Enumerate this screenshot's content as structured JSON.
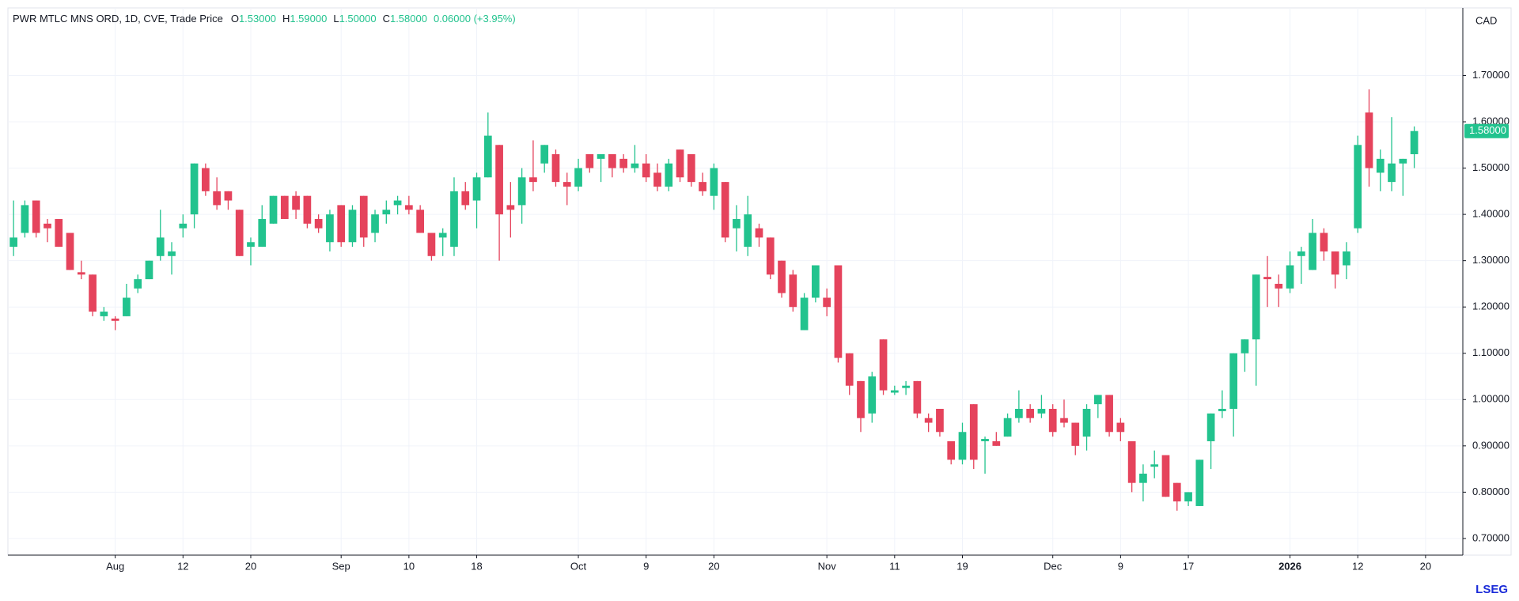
{
  "header": {
    "title": "PWR MTLC MNS ORD, 1D, CVE, Trade Price",
    "items": [
      {
        "label": "O",
        "value": "1.53000"
      },
      {
        "label": "H",
        "value": "1.59000"
      },
      {
        "label": "L",
        "value": "1.50000"
      },
      {
        "label": "C",
        "value": "1.58000"
      }
    ],
    "change": "0.06000 (+3.95%)"
  },
  "currency": "CAD",
  "logo": "LSEG",
  "chart_data": {
    "type": "candlestick",
    "up_color": "#22c38e",
    "down_color": "#e5435c",
    "grid": true,
    "last_price": {
      "value": 1.58,
      "label": "1.58000"
    },
    "open": [
      1.33,
      1.36,
      1.43,
      1.38,
      1.39,
      1.36,
      1.275,
      1.27,
      1.18,
      1.175,
      1.18,
      1.24,
      1.26,
      1.31,
      1.31,
      1.37,
      1.4,
      1.5,
      1.45,
      1.45,
      1.41,
      1.33,
      1.33,
      1.38,
      1.44,
      1.44,
      1.44,
      1.39,
      1.34,
      1.42,
      1.34,
      1.44,
      1.36,
      1.4,
      1.42,
      1.42,
      1.41,
      1.36,
      1.35,
      1.33,
      1.45,
      1.43,
      1.48,
      1.55,
      1.42,
      1.42,
      1.48,
      1.51,
      1.53,
      1.47,
      1.46,
      1.53,
      1.52,
      1.53,
      1.52,
      1.5,
      1.51,
      1.49,
      1.46,
      1.54,
      1.53,
      1.47,
      1.44,
      1.47,
      1.37,
      1.33,
      1.37,
      1.35,
      1.3,
      1.27,
      1.15,
      1.22,
      1.22,
      1.29,
      1.1,
      1.04,
      0.97,
      1.13,
      1.015,
      1.025,
      1.04,
      0.96,
      0.98,
      0.91,
      0.87,
      0.99,
      0.91,
      0.91,
      0.92,
      0.96,
      0.98,
      0.97,
      0.98,
      0.96,
      0.95,
      0.92,
      0.99,
      1.01,
      0.95,
      0.91,
      0.82,
      0.855,
      0.88,
      0.82,
      0.78,
      0.77,
      0.91,
      0.975,
      0.98,
      1.1,
      1.13,
      1.265,
      1.25,
      1.24,
      1.31,
      1.28,
      1.36,
      1.32,
      1.29,
      1.37,
      1.62,
      1.49,
      1.47,
      1.51,
      1.53
    ],
    "high": [
      1.43,
      1.43,
      1.43,
      1.39,
      1.39,
      1.36,
      1.3,
      1.27,
      1.2,
      1.18,
      1.25,
      1.27,
      1.3,
      1.41,
      1.34,
      1.4,
      1.51,
      1.51,
      1.48,
      1.45,
      1.41,
      1.35,
      1.42,
      1.44,
      1.44,
      1.45,
      1.44,
      1.4,
      1.41,
      1.42,
      1.42,
      1.44,
      1.41,
      1.43,
      1.44,
      1.44,
      1.42,
      1.36,
      1.37,
      1.48,
      1.47,
      1.49,
      1.62,
      1.55,
      1.47,
      1.5,
      1.56,
      1.55,
      1.54,
      1.49,
      1.52,
      1.53,
      1.53,
      1.53,
      1.53,
      1.55,
      1.53,
      1.51,
      1.52,
      1.54,
      1.53,
      1.49,
      1.51,
      1.47,
      1.42,
      1.44,
      1.38,
      1.35,
      1.3,
      1.28,
      1.23,
      1.29,
      1.24,
      1.29,
      1.1,
      1.04,
      1.06,
      1.13,
      1.03,
      1.04,
      1.04,
      0.97,
      0.98,
      0.91,
      0.95,
      0.99,
      0.92,
      0.93,
      0.97,
      1.02,
      0.99,
      1.01,
      0.99,
      1.0,
      0.95,
      0.99,
      1.01,
      1.01,
      0.96,
      0.91,
      0.86,
      0.89,
      0.88,
      0.82,
      0.8,
      0.87,
      0.97,
      1.02,
      1.1,
      1.13,
      1.27,
      1.31,
      1.27,
      1.32,
      1.33,
      1.39,
      1.37,
      1.32,
      1.34,
      1.57,
      1.67,
      1.54,
      1.61,
      1.52,
      1.59
    ],
    "low": [
      1.31,
      1.35,
      1.35,
      1.34,
      1.33,
      1.28,
      1.26,
      1.18,
      1.17,
      1.15,
      1.18,
      1.23,
      1.26,
      1.3,
      1.27,
      1.35,
      1.37,
      1.44,
      1.41,
      1.41,
      1.31,
      1.29,
      1.33,
      1.38,
      1.39,
      1.39,
      1.37,
      1.36,
      1.32,
      1.33,
      1.33,
      1.33,
      1.34,
      1.38,
      1.4,
      1.4,
      1.36,
      1.3,
      1.31,
      1.31,
      1.41,
      1.37,
      1.48,
      1.3,
      1.35,
      1.38,
      1.45,
      1.49,
      1.46,
      1.42,
      1.45,
      1.49,
      1.47,
      1.48,
      1.49,
      1.49,
      1.47,
      1.45,
      1.45,
      1.47,
      1.46,
      1.44,
      1.41,
      1.34,
      1.32,
      1.31,
      1.33,
      1.26,
      1.22,
      1.19,
      1.15,
      1.21,
      1.18,
      1.08,
      1.01,
      0.93,
      0.95,
      1.01,
      1.01,
      1.01,
      0.96,
      0.93,
      0.92,
      0.86,
      0.86,
      0.85,
      0.84,
      0.9,
      0.92,
      0.95,
      0.95,
      0.96,
      0.92,
      0.94,
      0.88,
      0.89,
      0.96,
      0.92,
      0.91,
      0.8,
      0.78,
      0.83,
      0.79,
      0.76,
      0.77,
      0.77,
      0.85,
      0.96,
      0.92,
      1.06,
      1.03,
      1.2,
      1.2,
      1.23,
      1.25,
      1.28,
      1.3,
      1.24,
      1.26,
      1.36,
      1.46,
      1.45,
      1.45,
      1.44,
      1.5
    ],
    "close": [
      1.35,
      1.42,
      1.36,
      1.37,
      1.33,
      1.28,
      1.27,
      1.19,
      1.19,
      1.17,
      1.22,
      1.26,
      1.3,
      1.35,
      1.32,
      1.38,
      1.51,
      1.45,
      1.42,
      1.43,
      1.31,
      1.34,
      1.39,
      1.44,
      1.39,
      1.41,
      1.38,
      1.37,
      1.4,
      1.34,
      1.41,
      1.35,
      1.4,
      1.41,
      1.43,
      1.41,
      1.36,
      1.31,
      1.36,
      1.45,
      1.42,
      1.48,
      1.57,
      1.4,
      1.41,
      1.48,
      1.47,
      1.55,
      1.47,
      1.46,
      1.5,
      1.5,
      1.53,
      1.5,
      1.5,
      1.51,
      1.48,
      1.46,
      1.51,
      1.48,
      1.47,
      1.45,
      1.5,
      1.35,
      1.39,
      1.4,
      1.35,
      1.27,
      1.23,
      1.2,
      1.22,
      1.29,
      1.2,
      1.09,
      1.03,
      0.96,
      1.05,
      1.02,
      1.02,
      1.03,
      0.97,
      0.95,
      0.93,
      0.87,
      0.93,
      0.87,
      0.915,
      0.9,
      0.96,
      0.98,
      0.96,
      0.98,
      0.93,
      0.95,
      0.9,
      0.98,
      1.01,
      0.93,
      0.93,
      0.82,
      0.84,
      0.86,
      0.79,
      0.78,
      0.8,
      0.87,
      0.97,
      0.98,
      1.1,
      1.13,
      1.27,
      1.26,
      1.24,
      1.29,
      1.32,
      1.36,
      1.32,
      1.27,
      1.32,
      1.55,
      1.5,
      1.52,
      1.51,
      1.52,
      1.58
    ],
    "xlim": [
      -0.5,
      128.3
    ],
    "xticks": [
      {
        "value": 9,
        "label": "Aug"
      },
      {
        "value": 15,
        "label": "12"
      },
      {
        "value": 21,
        "label": "20"
      },
      {
        "value": 29,
        "label": "Sep"
      },
      {
        "value": 35,
        "label": "10"
      },
      {
        "value": 41,
        "label": "18"
      },
      {
        "value": 50,
        "label": "Oct"
      },
      {
        "value": 56,
        "label": "9"
      },
      {
        "value": 62,
        "label": "20"
      },
      {
        "value": 72,
        "label": "Nov"
      },
      {
        "value": 78,
        "label": "11"
      },
      {
        "value": 84,
        "label": "19"
      },
      {
        "value": 92,
        "label": "Dec"
      },
      {
        "value": 98,
        "label": "9"
      },
      {
        "value": 104,
        "label": "17"
      },
      {
        "value": 113,
        "label": "2026"
      },
      {
        "value": 119,
        "label": "12"
      },
      {
        "value": 125,
        "label": "20"
      }
    ],
    "ylim": [
      0.664,
      1.846
    ],
    "yticks": [
      {
        "value": 0.7,
        "label": "0.70000"
      },
      {
        "value": 0.8,
        "label": "0.80000"
      },
      {
        "value": 0.9,
        "label": "0.90000"
      },
      {
        "value": 1.0,
        "label": "1.00000"
      },
      {
        "value": 1.1,
        "label": "1.10000"
      },
      {
        "value": 1.2,
        "label": "1.20000"
      },
      {
        "value": 1.3,
        "label": "1.30000"
      },
      {
        "value": 1.4,
        "label": "1.40000"
      },
      {
        "value": 1.5,
        "label": "1.50000"
      },
      {
        "value": 1.6,
        "label": "1.60000"
      },
      {
        "value": 1.7,
        "label": "1.70000"
      }
    ]
  }
}
